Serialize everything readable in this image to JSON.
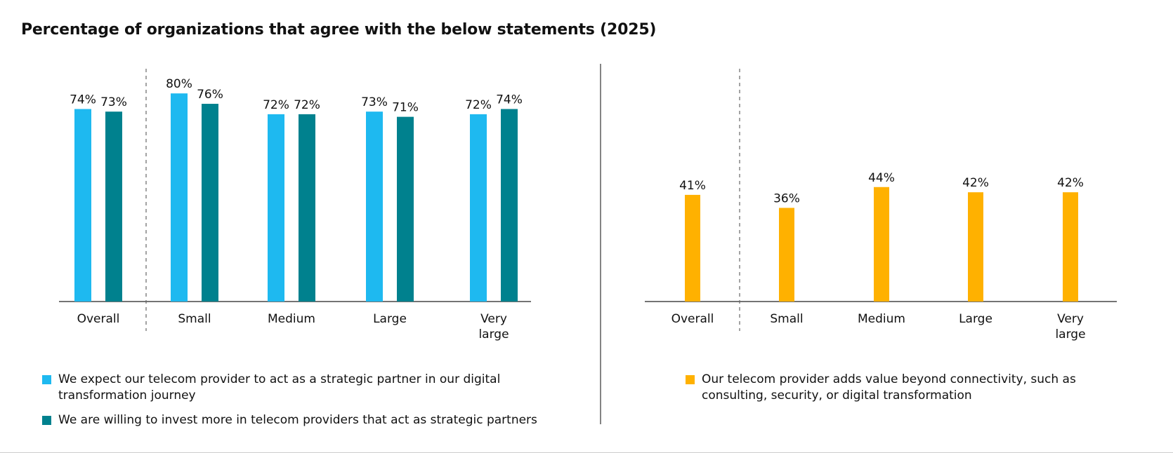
{
  "title": "Percentage of organizations that agree with the below statements (2025)",
  "chart_data": [
    {
      "type": "bar",
      "categories": [
        "Overall",
        "Small",
        "Medium",
        "Large",
        "Very large"
      ],
      "series": [
        {
          "name": "We expect our telecom provider to act as a strategic partner in our digital transformation journey",
          "values": [
            74,
            80,
            72,
            73,
            72
          ],
          "color": "#1EB9F0"
        },
        {
          "name": "We are willing to invest more in telecom providers that act as strategic partners",
          "values": [
            73,
            76,
            72,
            71,
            74
          ],
          "color": "#00818E"
        }
      ],
      "value_suffix": "%",
      "ylim": [
        0,
        100
      ],
      "separator_after": "Overall"
    },
    {
      "type": "bar",
      "categories": [
        "Overall",
        "Small",
        "Medium",
        "Large",
        "Very large"
      ],
      "series": [
        {
          "name": "Our telecom provider adds value beyond connectivity, such as consulting, security, or digital transformation",
          "values": [
            41,
            36,
            44,
            42,
            42
          ],
          "color": "#FFB100"
        }
      ],
      "value_suffix": "%",
      "ylim": [
        0,
        100
      ],
      "separator_after": "Overall"
    }
  ]
}
